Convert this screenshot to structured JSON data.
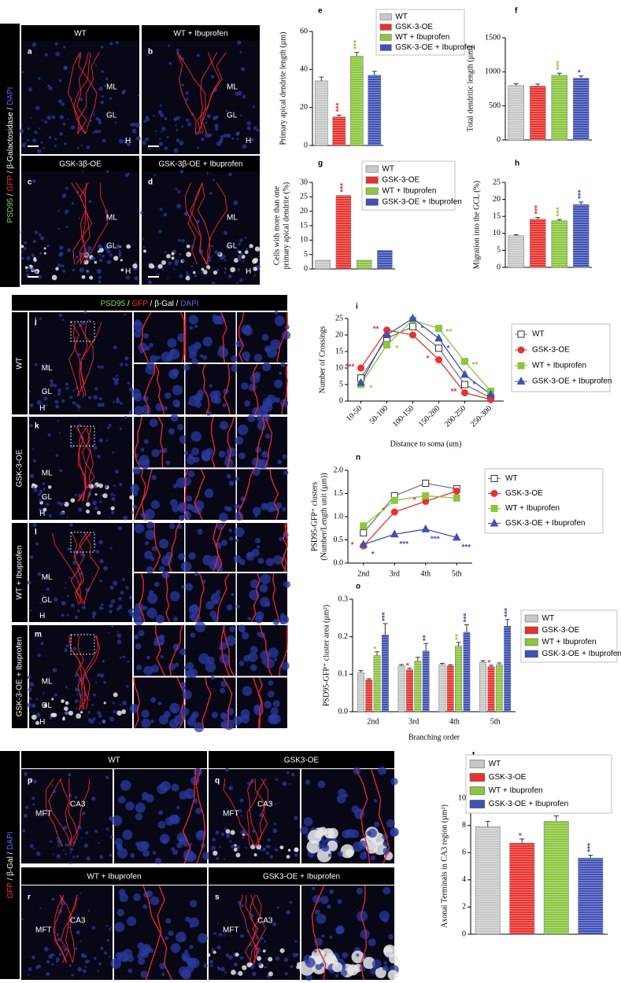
{
  "chart_data": [
    {
      "panel": "e",
      "type": "bar",
      "ylabel": "Primary apical dendrite length (µm)",
      "categories": [
        "WT",
        "GSK-3-OE",
        "WT + Ibuprofen",
        "GSK-3-OE + Ibuprofen"
      ],
      "colors": [
        "#c8c8c8",
        "#e8322e",
        "#8cc63f",
        "#3f51b5"
      ],
      "values": [
        34,
        15,
        47,
        37
      ],
      "errors": [
        2,
        1,
        2,
        2
      ],
      "ylim": [
        0,
        60
      ],
      "yticks": [
        0,
        20,
        40,
        60
      ],
      "annotations": [
        {
          "index": 1,
          "text": "***",
          "color": "#e8322e"
        },
        {
          "index": 2,
          "text": "***",
          "color": "#8cc63f"
        }
      ]
    },
    {
      "panel": "f",
      "type": "bar",
      "ylabel": "Total dendritic length (µm)",
      "colors": [
        "#c8c8c8",
        "#e8322e",
        "#8cc63f",
        "#3f51b5"
      ],
      "values": [
        800,
        790,
        950,
        910
      ],
      "errors": [
        25,
        30,
        30,
        30
      ],
      "ylim": [
        0,
        1500
      ],
      "yticks": [
        0,
        500,
        1000,
        1500
      ],
      "annotations": [
        {
          "index": 2,
          "text": "***",
          "color": "#8cc63f"
        },
        {
          "index": 3,
          "text": "*",
          "color": "#3f51b5"
        }
      ]
    },
    {
      "panel": "g",
      "type": "bar",
      "ylabel": [
        "Cells with more than one",
        "primary apical dendrite (%)"
      ],
      "categories": [
        "WT",
        "GSK-3-OE",
        "WT + Ibuprofen",
        "GSK-3-OE + Ibuprofen"
      ],
      "colors": [
        "#c8c8c8",
        "#e8322e",
        "#8cc63f",
        "#3f51b5"
      ],
      "values": [
        3,
        25.5,
        3,
        6.5
      ],
      "ylim": [
        0,
        30
      ],
      "yticks": [
        0,
        5,
        10,
        15,
        20,
        25,
        30
      ],
      "annotations": [
        {
          "index": 1,
          "text": "***",
          "color": "#e8322e"
        }
      ]
    },
    {
      "panel": "h",
      "type": "bar",
      "ylabel": "Migration into the GCL (%)",
      "colors": [
        "#c8c8c8",
        "#e8322e",
        "#8cc63f",
        "#3f51b5"
      ],
      "values": [
        9.3,
        14.2,
        13.7,
        18.5
      ],
      "errors": [
        0.3,
        0.5,
        0.4,
        0.7
      ],
      "ylim": [
        0,
        25
      ],
      "yticks": [
        0,
        5,
        10,
        15,
        20,
        25
      ],
      "annotations": [
        {
          "index": 1,
          "text": "***",
          "color": "#e8322e"
        },
        {
          "index": 2,
          "text": "***",
          "color": "#8cc63f"
        },
        {
          "index": 3,
          "text": "***",
          "color": "#3f51b5"
        }
      ]
    },
    {
      "panel": "i",
      "type": "line",
      "ylabel": "Number of Crossings",
      "xlabel": "Distance to soma (um)",
      "categories": [
        "10-50",
        "50-100",
        "100-150",
        "150-200",
        "200-250",
        "250-300"
      ],
      "ylim": [
        0,
        25
      ],
      "yticks": [
        0,
        5,
        10,
        15,
        20,
        25
      ],
      "series": [
        {
          "name": "WT",
          "color": "#777777",
          "marker": "square-open",
          "values": [
            7,
            19,
            22.5,
            16,
            5,
            1
          ]
        },
        {
          "name": "GSK-3-OE",
          "color": "#e8322e",
          "marker": "circle",
          "values": [
            10,
            21.5,
            20,
            12.5,
            2.5,
            0.5
          ]
        },
        {
          "name": "WT + Ibuprofen",
          "color": "#8cc63f",
          "marker": "square",
          "values": [
            5,
            17,
            24.5,
            22,
            12,
            3
          ]
        },
        {
          "name": "GSK-3-OE + Ibuprofen",
          "color": "#3f51b5",
          "marker": "triangle",
          "values": [
            5.5,
            20,
            25,
            19,
            8,
            2
          ]
        }
      ],
      "annotations": [
        {
          "series": 1,
          "index": 0,
          "text": "***"
        },
        {
          "series": 2,
          "index": 0,
          "text": "*"
        },
        {
          "series": 1,
          "index": 1,
          "text": "**"
        },
        {
          "series": 2,
          "index": 1,
          "text": "*"
        },
        {
          "series": 3,
          "index": 2,
          "text": "*"
        },
        {
          "series": 2,
          "index": 3,
          "text": "**"
        },
        {
          "series": 3,
          "index": 3,
          "text": "*"
        },
        {
          "series": 1,
          "index": 3,
          "text": "*"
        },
        {
          "series": 2,
          "index": 4,
          "text": "**"
        },
        {
          "series": 3,
          "index": 4,
          "text": "*"
        },
        {
          "series": 1,
          "index": 4,
          "text": "**"
        }
      ]
    },
    {
      "panel": "n",
      "type": "line",
      "ylabel": [
        "PSD95-GFP⁺ clusters",
        "(Number/Length unit (µm))"
      ],
      "categories": [
        "2nd",
        "3rd",
        "4th",
        "5th"
      ],
      "ylim": [
        0,
        2
      ],
      "yticks": [
        {
          "value": 0,
          "label": "0.0"
        },
        {
          "value": 0.5,
          "label": "0.5"
        },
        {
          "value": 1,
          "label": "1.0"
        },
        {
          "value": 1.5,
          "label": "1.5"
        },
        {
          "value": 2,
          "label": "2.0"
        }
      ],
      "series": [
        {
          "name": "WT",
          "color": "#777777",
          "marker": "square-open",
          "values": [
            0.65,
            1.45,
            1.72,
            1.6
          ]
        },
        {
          "name": "GSK-3-OE",
          "color": "#e8322e",
          "marker": "circle",
          "values": [
            0.37,
            1.1,
            1.33,
            1.55
          ]
        },
        {
          "name": "WT + Ibuprofen",
          "color": "#8cc63f",
          "marker": "square",
          "values": [
            0.8,
            1.35,
            1.45,
            1.4
          ]
        },
        {
          "name": "GSK-3-OE + Ibuprofen",
          "color": "#3f51b5",
          "marker": "triangle",
          "values": [
            0.4,
            0.62,
            0.73,
            0.55
          ]
        }
      ],
      "annotations": [
        {
          "series": 1,
          "index": 0,
          "text": "*"
        },
        {
          "series": 3,
          "index": 0,
          "text": "*"
        },
        {
          "series": 1,
          "index": 1,
          "text": "*"
        },
        {
          "series": 3,
          "index": 1,
          "text": "***"
        },
        {
          "series": 1,
          "index": 2,
          "text": "*"
        },
        {
          "series": 3,
          "index": 2,
          "text": "***"
        },
        {
          "series": 3,
          "index": 3,
          "text": "***"
        }
      ]
    },
    {
      "panel": "o",
      "type": "grouped_bar",
      "ylabel": "PSD95-GFP⁺ cluster area (µm²)",
      "xlabel": "Branching order",
      "categories": [
        "2nd",
        "3rd",
        "4th",
        "5th"
      ],
      "ylim": [
        0,
        0.3
      ],
      "yticks": [
        {
          "value": 0,
          "label": "0.0"
        },
        {
          "value": 0.1,
          "label": "0.1"
        },
        {
          "value": 0.2,
          "label": "0.2"
        },
        {
          "value": 0.3,
          "label": "0.3"
        }
      ],
      "series": [
        {
          "name": "WT",
          "color": "#c8c8c8",
          "values": [
            0.105,
            0.122,
            0.125,
            0.132
          ],
          "errors": [
            0.005,
            0.004,
            0.004,
            0.004
          ]
        },
        {
          "name": "GSK-3-OE",
          "color": "#e8322e",
          "values": [
            0.085,
            0.112,
            0.122,
            0.12
          ],
          "errors": [
            0.003,
            0.004,
            0.003,
            0.004
          ]
        },
        {
          "name": "WT + Ibuprofen",
          "color": "#8cc63f",
          "values": [
            0.15,
            0.135,
            0.175,
            0.125
          ],
          "errors": [
            0.01,
            0.01,
            0.01,
            0.005
          ]
        },
        {
          "name": "GSK-3-OE + Ibuprofen",
          "color": "#3f51b5",
          "values": [
            0.205,
            0.162,
            0.212,
            0.228
          ],
          "errors": [
            0.03,
            0.02,
            0.02,
            0.018
          ]
        }
      ],
      "annotations": [
        {
          "series": 2,
          "index": 0,
          "text": "*"
        },
        {
          "series": 3,
          "index": 0,
          "text": "***"
        },
        {
          "series": 1,
          "index": 1,
          "text": "*"
        },
        {
          "series": 3,
          "index": 1,
          "text": "**"
        },
        {
          "series": 2,
          "index": 2,
          "text": "**"
        },
        {
          "series": 3,
          "index": 2,
          "text": "***"
        },
        {
          "series": 1,
          "index": 3,
          "text": "*"
        },
        {
          "series": 3,
          "index": 3,
          "text": "***"
        }
      ]
    },
    {
      "panel": "t",
      "type": "bar",
      "ylabel": "Axonal Terminals in CA3 region (µm²)",
      "categories": [
        "WT",
        "GSK-3-OE",
        "WT + Ibuprofen",
        "GSK-3-OE + Ibuprofen"
      ],
      "colors": [
        "#c8c8c8",
        "#e8322e",
        "#8cc63f",
        "#3f51b5"
      ],
      "values": [
        7.9,
        6.7,
        8.3,
        5.6
      ],
      "errors": [
        0.4,
        0.3,
        0.4,
        0.2
      ],
      "ylim": [
        0,
        10
      ],
      "yticks": [
        0,
        2,
        4,
        6,
        8,
        10
      ],
      "annotations": [
        {
          "index": 1,
          "text": "*",
          "color": "#e8322e"
        },
        {
          "index": 3,
          "text": "***",
          "color": "#3f51b5"
        }
      ]
    }
  ],
  "image_panels": {
    "top": {
      "stain": [
        "PSD95",
        " / ",
        "GFP",
        " / β-Galactosidase / ",
        "DAPI"
      ],
      "panels": [
        {
          "letter": "a",
          "title": "WT",
          "layers": [
            "ML",
            "GL",
            "H"
          ]
        },
        {
          "letter": "b",
          "title": "WT + Ibuprofen",
          "layers": [
            "ML",
            "GL",
            "H"
          ]
        },
        {
          "letter": "c",
          "title": "GSK-3β-OE",
          "layers": [
            "ML",
            "GL",
            "H"
          ]
        },
        {
          "letter": "d",
          "title": "GSK-3β-OE + Ibuprofen",
          "layers": [
            "ML",
            "GL",
            "H"
          ]
        }
      ]
    },
    "middle": {
      "stain": [
        "PSD95",
        " / ",
        "GFP",
        " / β-Gal / ",
        "DAPI"
      ],
      "rows": [
        {
          "letter": "j",
          "condition": "WT",
          "layers": [
            "ML",
            "GL",
            "H"
          ]
        },
        {
          "letter": "k",
          "condition": "GSK-3-OE",
          "layers": [
            "ML",
            "GL",
            "H"
          ]
        },
        {
          "letter": "l",
          "condition": "WT + Ibuprofen",
          "layers": [
            "ML",
            "GL",
            "H"
          ]
        },
        {
          "letter": "m",
          "condition": "GSK-3-OE + Ibuprofen",
          "layers": [
            "ML",
            "GL",
            "H"
          ]
        }
      ]
    },
    "bottom": {
      "stain": [
        "GFP",
        " / β-Gal / ",
        "DAPI"
      ],
      "panels": [
        {
          "letter": "p",
          "title": "WT",
          "regions": [
            "MFT",
            "CA3"
          ]
        },
        {
          "letter": "q",
          "title": "GSK3-OE",
          "regions": [
            "MFT",
            "CA3"
          ]
        },
        {
          "letter": "r",
          "title": "WT + Ibuprofen",
          "regions": [
            "MFT",
            "CA3"
          ]
        },
        {
          "letter": "s",
          "title": "GSK3-OE + Ibuprofen",
          "regions": [
            "MFT",
            "CA3"
          ]
        }
      ]
    }
  }
}
